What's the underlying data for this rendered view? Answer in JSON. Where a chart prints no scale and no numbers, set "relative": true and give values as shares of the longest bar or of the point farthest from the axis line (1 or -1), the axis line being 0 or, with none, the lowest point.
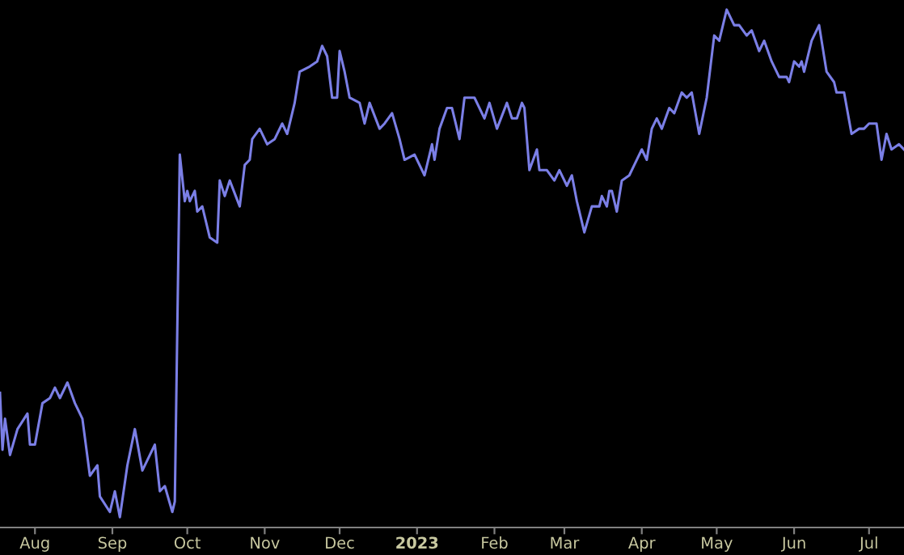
{
  "chart_data": {
    "type": "line",
    "relative": true,
    "x": [
      "2022-07-18",
      "2022-07-19",
      "2022-07-20",
      "2022-07-22",
      "2022-07-25",
      "2022-07-29",
      "2022-07-30",
      "2022-08-01",
      "2022-08-04",
      "2022-08-07",
      "2022-08-09",
      "2022-08-11",
      "2022-08-14",
      "2022-08-17",
      "2022-08-20",
      "2022-08-23",
      "2022-08-26",
      "2022-08-27",
      "2022-08-31",
      "2022-09-02",
      "2022-09-04",
      "2022-09-07",
      "2022-09-10",
      "2022-09-13",
      "2022-09-18",
      "2022-09-20",
      "2022-09-22",
      "2022-09-25",
      "2022-09-26",
      "2022-09-28",
      "2022-09-30",
      "2022-10-01",
      "2022-10-02",
      "2022-10-04",
      "2022-10-05",
      "2022-10-07",
      "2022-10-10",
      "2022-10-13",
      "2022-10-14",
      "2022-10-16",
      "2022-10-18",
      "2022-10-22",
      "2022-10-24",
      "2022-10-26",
      "2022-10-27",
      "2022-10-30",
      "2022-11-02",
      "2022-11-05",
      "2022-11-08",
      "2022-11-10",
      "2022-11-13",
      "2022-11-15",
      "2022-11-19",
      "2022-11-22",
      "2022-11-24",
      "2022-11-26",
      "2022-11-28",
      "2022-11-30",
      "2022-12-01",
      "2022-12-03",
      "2022-12-05",
      "2022-12-09",
      "2022-12-11",
      "2022-12-13",
      "2022-12-17",
      "2022-12-19",
      "2022-12-22",
      "2022-12-25",
      "2022-12-27",
      "2022-12-31",
      "2023-01-04",
      "2023-01-07",
      "2023-01-08",
      "2023-01-10",
      "2023-01-13",
      "2023-01-15",
      "2023-01-18",
      "2023-01-20",
      "2023-01-24",
      "2023-01-28",
      "2023-01-30",
      "2023-02-02",
      "2023-02-06",
      "2023-02-08",
      "2023-02-10",
      "2023-02-12",
      "2023-02-13",
      "2023-02-15",
      "2023-02-18",
      "2023-02-19",
      "2023-02-22",
      "2023-02-25",
      "2023-02-27",
      "2023-03-02",
      "2023-03-04",
      "2023-03-06",
      "2023-03-09",
      "2023-03-12",
      "2023-03-15",
      "2023-03-16",
      "2023-03-18",
      "2023-03-19",
      "2023-03-20",
      "2023-03-22",
      "2023-03-24",
      "2023-03-27",
      "2023-03-29",
      "2023-04-01",
      "2023-04-03",
      "2023-04-05",
      "2023-04-07",
      "2023-04-09",
      "2023-04-12",
      "2023-04-14",
      "2023-04-17",
      "2023-04-19",
      "2023-04-21",
      "2023-04-24",
      "2023-04-27",
      "2023-04-30",
      "2023-05-02",
      "2023-05-05",
      "2023-05-08",
      "2023-05-10",
      "2023-05-13",
      "2023-05-15",
      "2023-05-18",
      "2023-05-20",
      "2023-05-23",
      "2023-05-26",
      "2023-05-29",
      "2023-05-30",
      "2023-06-01",
      "2023-06-03",
      "2023-06-04",
      "2023-06-05",
      "2023-06-08",
      "2023-06-11",
      "2023-06-14",
      "2023-06-17",
      "2023-06-18",
      "2023-06-21",
      "2023-06-24",
      "2023-06-27",
      "2023-06-29",
      "2023-07-01",
      "2023-07-04",
      "2023-07-06",
      "2023-07-08",
      "2023-07-10",
      "2023-07-13",
      "2023-07-15"
    ],
    "series": [
      {
        "color": "#7b7fe6",
        "values": [
          0.26,
          0.15,
          0.21,
          0.14,
          0.19,
          0.22,
          0.16,
          0.16,
          0.24,
          0.25,
          0.27,
          0.25,
          0.28,
          0.24,
          0.21,
          0.1,
          0.12,
          0.06,
          0.03,
          0.07,
          0.02,
          0.12,
          0.19,
          0.11,
          0.16,
          0.07,
          0.08,
          0.03,
          0.05,
          0.72,
          0.63,
          0.65,
          0.63,
          0.65,
          0.61,
          0.62,
          0.56,
          0.55,
          0.67,
          0.64,
          0.67,
          0.62,
          0.7,
          0.71,
          0.75,
          0.77,
          0.74,
          0.75,
          0.78,
          0.76,
          0.82,
          0.88,
          0.89,
          0.9,
          0.93,
          0.91,
          0.83,
          0.83,
          0.92,
          0.88,
          0.83,
          0.82,
          0.78,
          0.82,
          0.77,
          0.78,
          0.8,
          0.75,
          0.71,
          0.72,
          0.68,
          0.74,
          0.71,
          0.77,
          0.81,
          0.81,
          0.75,
          0.83,
          0.83,
          0.79,
          0.82,
          0.77,
          0.82,
          0.79,
          0.79,
          0.82,
          0.81,
          0.69,
          0.73,
          0.69,
          0.69,
          0.67,
          0.69,
          0.66,
          0.68,
          0.63,
          0.57,
          0.62,
          0.62,
          0.64,
          0.62,
          0.65,
          0.65,
          0.61,
          0.67,
          0.68,
          0.7,
          0.73,
          0.71,
          0.77,
          0.79,
          0.77,
          0.81,
          0.8,
          0.84,
          0.83,
          0.84,
          0.76,
          0.83,
          0.95,
          0.94,
          1.0,
          0.97,
          0.97,
          0.95,
          0.96,
          0.92,
          0.94,
          0.9,
          0.87,
          0.87,
          0.86,
          0.9,
          0.89,
          0.9,
          0.88,
          0.94,
          0.97,
          0.88,
          0.86,
          0.84,
          0.84,
          0.76,
          0.77,
          0.77,
          0.78,
          0.78,
          0.71,
          0.76,
          0.73,
          0.74,
          0.73
        ]
      }
    ],
    "xlim": [
      "2022-07-18",
      "2023-07-15"
    ],
    "xticks": [
      {
        "value": "2022-08-01",
        "label": "Aug"
      },
      {
        "value": "2022-09-01",
        "label": "Sep"
      },
      {
        "value": "2022-10-01",
        "label": "Oct"
      },
      {
        "value": "2022-11-01",
        "label": "Nov"
      },
      {
        "value": "2022-12-01",
        "label": "Dec"
      },
      {
        "value": "2023-01-01",
        "label": "2023"
      },
      {
        "value": "2023-02-01",
        "label": "Feb"
      },
      {
        "value": "2023-03-01",
        "label": "Mar"
      },
      {
        "value": "2023-04-01",
        "label": "Apr"
      },
      {
        "value": "2023-05-01",
        "label": "May"
      },
      {
        "value": "2023-06-01",
        "label": "Jun"
      },
      {
        "value": "2023-07-01",
        "label": "Jul"
      }
    ],
    "grid": false,
    "legend": false,
    "tick_labels": "x",
    "line_style": "solid",
    "marker": "none"
  }
}
